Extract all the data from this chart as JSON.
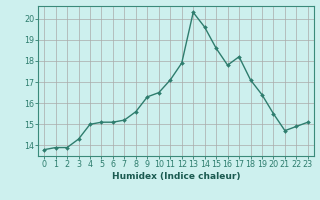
{
  "x": [
    0,
    1,
    2,
    3,
    4,
    5,
    6,
    7,
    8,
    9,
    10,
    11,
    12,
    13,
    14,
    15,
    16,
    17,
    18,
    19,
    20,
    21,
    22,
    23
  ],
  "y": [
    13.8,
    13.9,
    13.9,
    14.3,
    15.0,
    15.1,
    15.1,
    15.2,
    15.6,
    16.3,
    16.5,
    17.1,
    17.9,
    20.3,
    19.6,
    18.6,
    17.8,
    18.2,
    17.1,
    16.4,
    15.5,
    14.7,
    14.9,
    15.1
  ],
  "line_color": "#2e7d6e",
  "marker": "D",
  "marker_size": 2.0,
  "bg_color": "#cdf0ee",
  "grid_color": "#aaaaaa",
  "spine_color": "#3a8a7a",
  "tick_color": "#2e7d6e",
  "label_color": "#1a5a50",
  "xlabel": "Humidex (Indice chaleur)",
  "xlim": [
    -0.5,
    23.5
  ],
  "ylim": [
    13.5,
    20.6
  ],
  "yticks": [
    14,
    15,
    16,
    17,
    18,
    19,
    20
  ],
  "xticks": [
    0,
    1,
    2,
    3,
    4,
    5,
    6,
    7,
    8,
    9,
    10,
    11,
    12,
    13,
    14,
    15,
    16,
    17,
    18,
    19,
    20,
    21,
    22,
    23
  ],
  "xlabel_fontsize": 6.5,
  "tick_fontsize": 5.8,
  "line_width": 1.0
}
